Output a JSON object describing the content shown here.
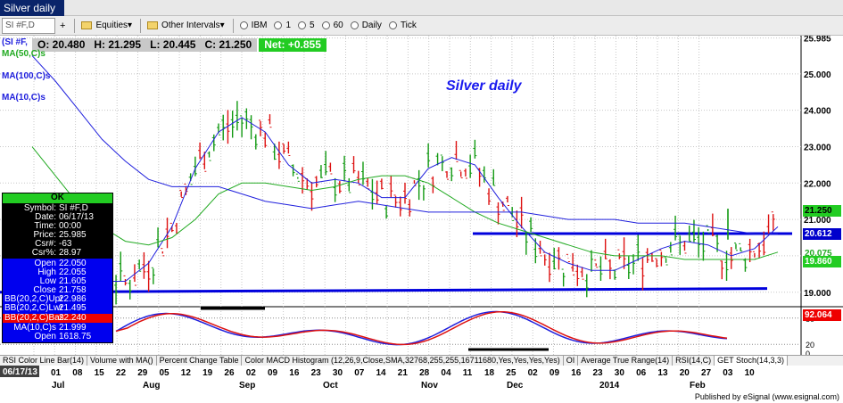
{
  "window": {
    "title": "Silver daily"
  },
  "toolbar": {
    "symbol_box": "SI #F,D",
    "items": [
      {
        "label": "Equities",
        "kind": "folder"
      },
      {
        "label": "Other Intervals",
        "kind": "folder"
      },
      {
        "label": "IBM",
        "kind": "radio"
      },
      {
        "label": "1",
        "kind": "radio"
      },
      {
        "label": "5",
        "kind": "radio"
      },
      {
        "label": "60",
        "kind": "radio"
      },
      {
        "label": "Daily",
        "kind": "radio"
      },
      {
        "label": "Tick",
        "kind": "radio"
      }
    ]
  },
  "chart": {
    "title": "Silver daily",
    "ohlc": {
      "open": "O: 20.480",
      "high": "H: 21.295",
      "low": "L: 20.445",
      "close": "C: 21.250",
      "net": "Net: +0.855"
    },
    "indicator_labels": [
      "(SI #F,",
      "MA(50,C)s",
      "MA(100,C)s",
      "MA(10,C)s"
    ],
    "y_ticks": [
      "25.985",
      "25.000",
      "24.000",
      "23.000",
      "22.000",
      "21.000",
      "20.000",
      "19.000"
    ],
    "price_boxes": [
      {
        "label": "21.250",
        "color": "#000000",
        "bg": "#22cc22"
      },
      {
        "label": "20.612",
        "color": "#ffffff",
        "bg": "#0000cc"
      },
      {
        "label": "20.075",
        "color": "#22aa22",
        "bg": "#ffffff"
      },
      {
        "label": "19.860",
        "color": "#ffffff",
        "bg": "#22cc22"
      }
    ],
    "stoch_value": "92.064",
    "stoch_ticks": [
      "80",
      "20",
      "0"
    ]
  },
  "data_window": {
    "ok_label": "OK",
    "black_rows": [
      {
        "k": "Symbol:",
        "v": "SI #F,D"
      },
      {
        "k": "Date:",
        "v": "06/17/13"
      },
      {
        "k": "Time:",
        "v": "00:00"
      },
      {
        "k": "Price:",
        "v": "25.985"
      },
      {
        "k": "Csr#:",
        "v": "-63"
      },
      {
        "k": "Csr%:",
        "v": "28.97"
      }
    ],
    "blue_rows": [
      {
        "k": "Open",
        "v": "22.050"
      },
      {
        "k": "High",
        "v": "22.055"
      },
      {
        "k": "Low",
        "v": "21.605"
      },
      {
        "k": "Close",
        "v": "21.758"
      },
      {
        "k": "BB(20,2,C)Upr",
        "v": "22.986"
      },
      {
        "k": "BB(20,2,C)Lwr",
        "v": "21.495"
      }
    ],
    "red_row": {
      "k": "BB(20,2,C)Bas",
      "v": "22.240"
    },
    "tail_rows": [
      {
        "k": "MA(10,C)s",
        "v": "21.999"
      },
      {
        "k": "Open",
        "v": "1618.75"
      }
    ]
  },
  "tabs": [
    "RSI Color Line Bar(14)",
    "Volume with MA()",
    "Percent Change Table",
    "Color MACD Histogram (12,26,9,Close,SMA,32768,255,255,16711680,Yes,Yes,Yes,Yes)",
    "OI",
    "Average True Range(14)",
    "RSI(14,C)",
    "GET Stoch(14,3,3)"
  ],
  "date_axis": {
    "start_label": "06/17/13",
    "days": [
      "01",
      "08",
      "15",
      "22",
      "29",
      "05",
      "12",
      "19",
      "26",
      "02",
      "09",
      "16",
      "23",
      "30",
      "07",
      "14",
      "21",
      "28",
      "04",
      "11",
      "18",
      "25",
      "02",
      "09",
      "16",
      "23",
      "30",
      "06",
      "13",
      "20",
      "27",
      "03",
      "10"
    ],
    "months": [
      "Jul",
      "Aug",
      "Sep",
      "Oct",
      "Nov",
      "Dec",
      "2014",
      "Feb"
    ]
  },
  "footer": {
    "published": "Published by eSignal (www.esignal.com)"
  },
  "chart_data": {
    "type": "line",
    "title": "Silver daily",
    "ylim": [
      18.7,
      26.0
    ],
    "series": [
      {
        "name": "MA(10,C)s",
        "color": "#2020dd",
        "values": [
          20.6,
          20.0,
          19.6,
          19.3,
          19.3,
          19.8,
          20.8,
          22.4,
          23.4,
          23.8,
          23.4,
          22.5,
          22.0,
          22.1,
          22.0,
          21.6,
          21.6,
          22.4,
          22.7,
          22.5,
          21.6,
          20.8,
          20.1,
          19.8,
          19.6,
          19.6,
          19.9,
          20.2,
          20.4,
          20.3,
          20.0,
          20.2,
          20.8
        ]
      },
      {
        "name": "MA(50,C)s",
        "color": "#22aa22",
        "values": [
          23.0,
          22.2,
          21.4,
          20.8,
          20.4,
          20.3,
          20.5,
          21.0,
          21.7,
          22.0,
          22.0,
          21.9,
          21.8,
          21.9,
          22.1,
          22.2,
          22.2,
          22.0,
          21.6,
          21.2,
          20.9,
          20.7,
          20.5,
          20.3,
          20.1,
          20.0,
          20.0,
          20.0,
          19.9,
          19.9,
          19.9,
          19.9,
          20.1
        ]
      },
      {
        "name": "MA(100,C)s",
        "color": "#2020dd",
        "values": [
          25.5,
          24.8,
          24.0,
          23.2,
          22.6,
          22.1,
          21.9,
          21.9,
          21.9,
          21.7,
          21.5,
          21.4,
          21.3,
          21.4,
          21.5,
          21.4,
          21.3,
          21.2,
          21.2,
          21.2,
          21.2,
          21.2,
          21.1,
          21.0,
          21.0,
          21.0,
          20.9,
          20.9,
          20.9,
          20.8,
          20.7,
          20.6,
          20.6
        ]
      }
    ]
  }
}
